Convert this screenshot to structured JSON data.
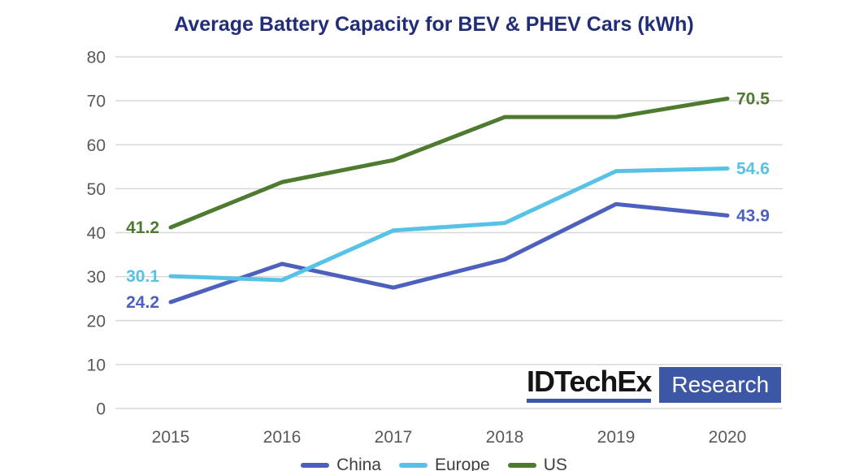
{
  "chart_data": {
    "type": "line",
    "title": "Average Battery Capacity for BEV & PHEV Cars (kWh)",
    "x": [
      "2015",
      "2016",
      "2017",
      "2018",
      "2019",
      "2020"
    ],
    "xlabel": "",
    "ylabel": "",
    "ylim": [
      0,
      80
    ],
    "ytick_step": 10,
    "grid": "horizontal-only",
    "legend_position": "bottom",
    "point_labels": "first-and-last",
    "series": [
      {
        "name": "China",
        "color": "#4e60bd",
        "values": [
          24.2,
          32.9,
          27.5,
          33.9,
          46.5,
          43.9
        ],
        "first_label": "24.2",
        "last_label": "43.9"
      },
      {
        "name": "Europe",
        "color": "#56c2e6",
        "values": [
          30.1,
          29.2,
          40.5,
          42.2,
          54.0,
          54.6
        ],
        "first_label": "30.1",
        "last_label": "54.6"
      },
      {
        "name": "US",
        "color": "#4e7b2f",
        "values": [
          41.2,
          51.5,
          56.5,
          66.3,
          66.3,
          70.5
        ],
        "first_label": "41.2",
        "last_label": "70.5"
      }
    ]
  },
  "logo": {
    "brand": "IDTechEx",
    "suffix": "Research",
    "accent_color": "#3c57a5",
    "brand_text_color": "#141414",
    "suffix_text_color": "#ffffff"
  },
  "colors": {
    "title": "#222d78",
    "axis_labels": "#595959",
    "gridline": "#d8d8d8",
    "background": "#ffffff",
    "legend_text": "#3f3f3f"
  }
}
